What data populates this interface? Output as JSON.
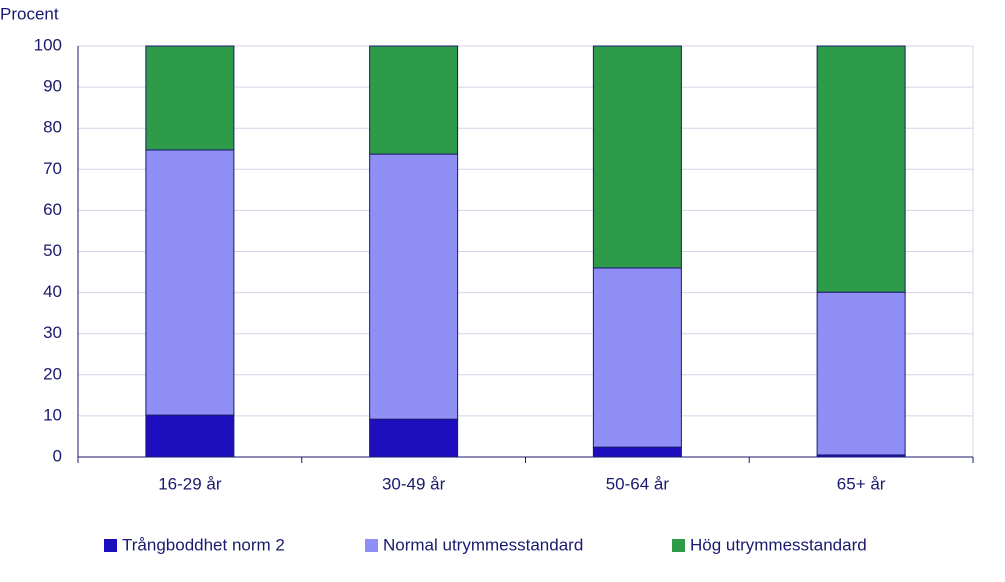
{
  "chart_data": {
    "type": "stacked_bar",
    "y_axis_label": "Procent",
    "categories": [
      "16-29 år",
      "30-49 år",
      "50-64 år",
      "65+ år"
    ],
    "series": [
      {
        "name": "Trångboddhet norm 2",
        "color": "#1e0fbe",
        "values": [
          10.2,
          9.2,
          2.4,
          0.5
        ]
      },
      {
        "name": "Normal utrymmesstandard",
        "color": "#8f8ff5",
        "values": [
          64.5,
          64.5,
          43.6,
          39.6
        ]
      },
      {
        "name": "Hög utrymmesstandard",
        "color": "#2e9b48",
        "values": [
          25.3,
          26.3,
          54.0,
          59.9
        ]
      }
    ],
    "ylim": [
      0,
      100
    ],
    "yticks": [
      0,
      10,
      20,
      30,
      40,
      50,
      60,
      70,
      80,
      90,
      100
    ],
    "grid": true
  }
}
